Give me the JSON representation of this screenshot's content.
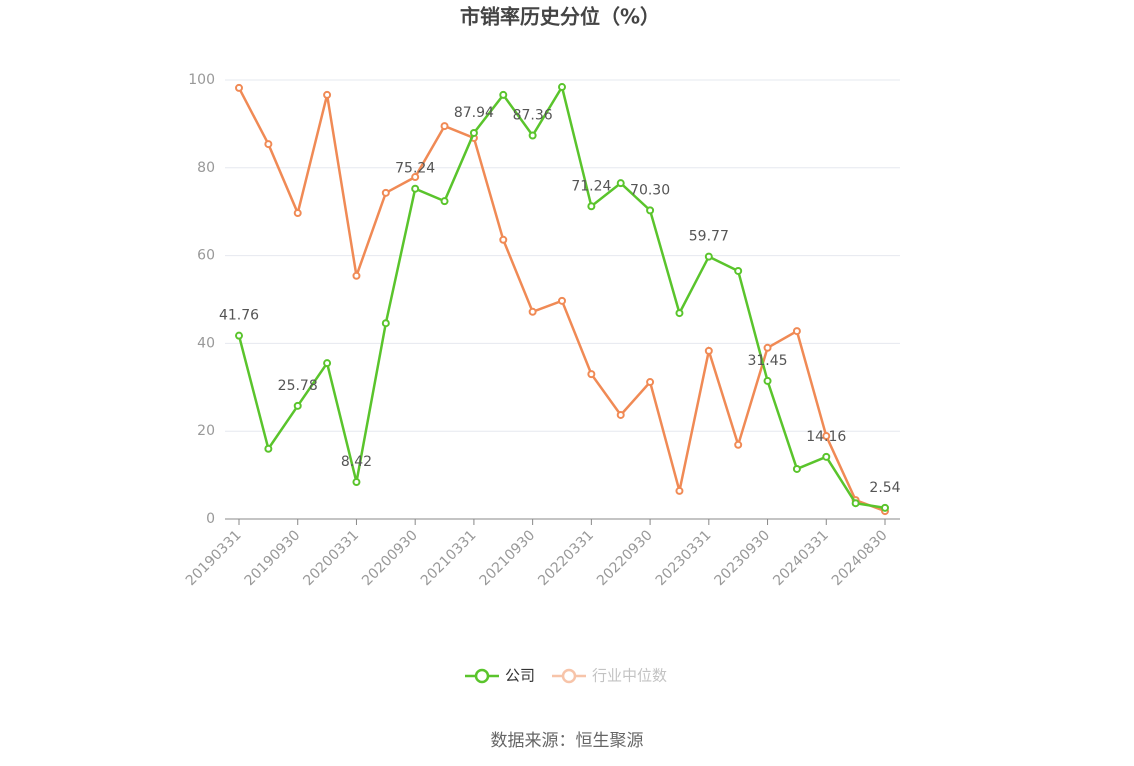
{
  "chart_data": {
    "type": "line",
    "title": "市销率历史分位（%）",
    "categories": [
      "20190331",
      null,
      "20190930",
      null,
      "20200331",
      null,
      "20200930",
      null,
      "20210331",
      null,
      "20210930",
      null,
      "20220331",
      null,
      "20220930",
      null,
      "20230331",
      null,
      "20230930",
      null,
      "20240331",
      null,
      "20240830"
    ],
    "series": [
      {
        "name": "公司",
        "color": "#5ac42c",
        "values": [
          41.76,
          16,
          25.78,
          35.5,
          8.42,
          44.6,
          75.24,
          72.4,
          87.94,
          96.6,
          87.36,
          98.4,
          71.24,
          76.5,
          70.3,
          46.9,
          59.77,
          56.5,
          31.45,
          11.4,
          14.16,
          3.6,
          2.54
        ],
        "value_labels": [
          "41.76",
          null,
          "25.78",
          null,
          "8.42",
          null,
          "75.24",
          null,
          "87.94",
          null,
          "87.36",
          null,
          "71.24",
          null,
          "70.30",
          null,
          "59.77",
          null,
          "31.45",
          null,
          "14.16",
          null,
          "2.54"
        ]
      },
      {
        "name": "行业中位数",
        "color": "#f08a55",
        "values": [
          98.2,
          85.4,
          69.7,
          96.6,
          55.4,
          74.3,
          77.9,
          89.5,
          86.8,
          63.6,
          47.2,
          49.7,
          33.0,
          23.7,
          31.2,
          6.4,
          38.3,
          16.9,
          39.0,
          42.8,
          18.9,
          4.3,
          1.8
        ]
      }
    ],
    "ylim": [
      0,
      100
    ],
    "yticks": [
      0,
      20,
      40,
      60,
      80,
      100
    ],
    "grid": true,
    "source": "数据来源：恒生聚源"
  }
}
